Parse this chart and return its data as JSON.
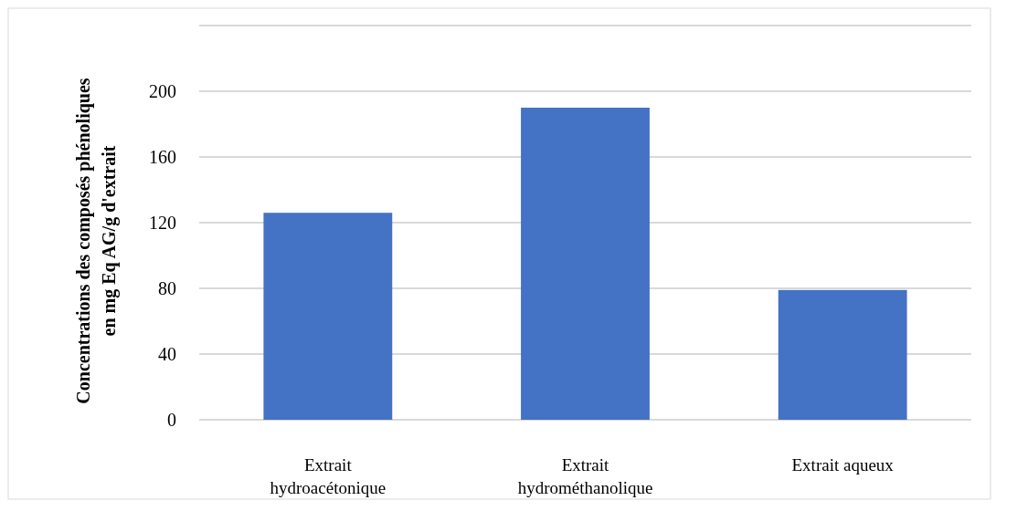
{
  "chart_data": {
    "type": "bar",
    "ylabel": "Concentrations des composés phénoliques en mg Eq AG/g d'extrait",
    "categories": [
      "Extrait hydroacétonique",
      "Extrait hydrométhanolique",
      "Extrait aqueux"
    ],
    "values": [
      126,
      190,
      79
    ],
    "color": "#4472c4",
    "ylim": [
      0,
      240
    ],
    "yticks": [
      0,
      40,
      80,
      120,
      160,
      200,
      {
        "value": 240,
        "label": null
      }
    ],
    "grid": true
  }
}
